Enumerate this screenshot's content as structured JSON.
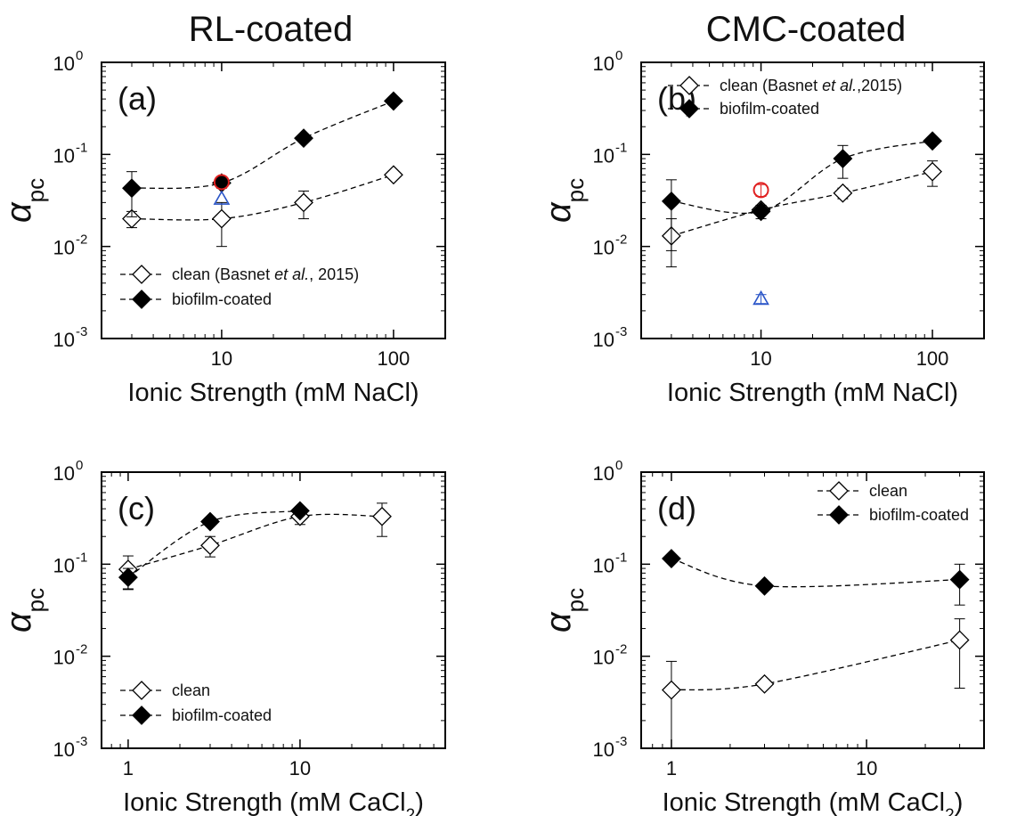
{
  "column_titles": [
    "RL-coated",
    "CMC-coated"
  ],
  "chart_data": [
    {
      "type": "scatter",
      "panel_label": "(a)",
      "title": "",
      "xlabel": "Ionic Strength (mM NaCl)",
      "xlabel_parts": [
        "Ionic Strength (mM NaCl)"
      ],
      "ylabel": "α",
      "ylabel_sub": "pc",
      "xscale": "log",
      "yscale": "log",
      "xlim": [
        2,
        200
      ],
      "ylim": [
        0.001,
        1
      ],
      "xticks": [
        10,
        100
      ],
      "xtick_labels": [
        "10",
        "100"
      ],
      "yticks": [
        0.001,
        0.01,
        0.1,
        1
      ],
      "ytick_labels": [
        {
          "base": "10",
          "exp": "-3"
        },
        {
          "base": "10",
          "exp": "-2"
        },
        {
          "base": "10",
          "exp": "-1"
        },
        {
          "base": "10",
          "exp": "0"
        }
      ],
      "legend_position": "bottom-left",
      "series": [
        {
          "name": "clean (Basnet et al., 2015)",
          "name_parts": [
            "clean (Basnet ",
            "et al.",
            ", 2015)"
          ],
          "marker": "diamond-open",
          "connected": true,
          "x": [
            3,
            10,
            30,
            100
          ],
          "y": [
            0.02,
            0.02,
            0.03,
            0.06
          ],
          "err": [
            0.004,
            0.01,
            0.01,
            0.005
          ]
        },
        {
          "name": "biofilm-coated",
          "marker": "diamond-filled",
          "connected": true,
          "x": [
            3,
            10,
            30,
            100
          ],
          "y": [
            0.043,
            0.049,
            0.15,
            0.38
          ],
          "err": [
            0.022,
            0.006,
            0,
            0
          ]
        },
        {
          "marker": "circle-open-red",
          "connected": false,
          "x": [
            10
          ],
          "y": [
            0.05
          ],
          "err": [
            0
          ]
        },
        {
          "marker": "triangle-open-blue",
          "connected": false,
          "x": [
            10
          ],
          "y": [
            0.033
          ],
          "err": [
            0
          ]
        }
      ]
    },
    {
      "type": "scatter",
      "panel_label": "(b)",
      "title": "",
      "xlabel": "Ionic Strength (mM NaCl)",
      "xlabel_parts": [
        "Ionic Strength (mM NaCl)"
      ],
      "ylabel": "α",
      "ylabel_sub": "pc",
      "xscale": "log",
      "yscale": "log",
      "xlim": [
        2,
        200
      ],
      "ylim": [
        0.001,
        1
      ],
      "xticks": [
        10,
        100
      ],
      "xtick_labels": [
        "10",
        "100"
      ],
      "yticks": [
        0.001,
        0.01,
        0.1,
        1
      ],
      "ytick_labels": [
        {
          "base": "10",
          "exp": "-3"
        },
        {
          "base": "10",
          "exp": "-2"
        },
        {
          "base": "10",
          "exp": "-1"
        },
        {
          "base": "10",
          "exp": "0"
        }
      ],
      "legend_position": "top",
      "series": [
        {
          "name": "clean (Basnet et al.,2015)",
          "name_parts": [
            "clean (Basnet ",
            "et al.",
            ",2015)"
          ],
          "marker": "diamond-open",
          "connected": true,
          "x": [
            3,
            10,
            30,
            100
          ],
          "y": [
            0.013,
            0.025,
            0.038,
            0.065
          ],
          "err": [
            0.007,
            0.003,
            0.005,
            0.02
          ]
        },
        {
          "name": "biofilm-coated",
          "marker": "diamond-filled",
          "connected": true,
          "x": [
            3,
            10,
            30,
            100
          ],
          "y": [
            0.031,
            0.024,
            0.09,
            0.14
          ],
          "err": [
            0.022,
            0.004,
            0.035,
            0
          ]
        },
        {
          "marker": "circle-open-red",
          "connected": false,
          "x": [
            10
          ],
          "y": [
            0.041
          ],
          "err": [
            0.006
          ]
        },
        {
          "marker": "triangle-open-blue",
          "connected": false,
          "x": [
            10
          ],
          "y": [
            0.0027
          ],
          "err": [
            0.0003
          ]
        }
      ]
    },
    {
      "type": "scatter",
      "panel_label": "(c)",
      "title": "",
      "xlabel": "Ionic Strength (mM CaCl2)",
      "xlabel_parts": [
        "Ionic Strength (mM CaCl",
        "2",
        ")"
      ],
      "ylabel": "α",
      "ylabel_sub": "pc",
      "xscale": "log",
      "yscale": "log",
      "xlim": [
        0.7,
        70
      ],
      "ylim": [
        0.001,
        1
      ],
      "xticks": [
        1,
        10
      ],
      "xtick_labels": [
        "1",
        "10"
      ],
      "yticks": [
        0.001,
        0.01,
        0.1,
        1
      ],
      "ytick_labels": [
        {
          "base": "10",
          "exp": "-3"
        },
        {
          "base": "10",
          "exp": "-2"
        },
        {
          "base": "10",
          "exp": "-1"
        },
        {
          "base": "10",
          "exp": "0"
        }
      ],
      "legend_position": "bottom-left",
      "series": [
        {
          "name": "clean",
          "marker": "diamond-open",
          "connected": true,
          "x": [
            1,
            3,
            10,
            30
          ],
          "y": [
            0.088,
            0.16,
            0.33,
            0.33
          ],
          "err": [
            0.035,
            0.04,
            0.06,
            0.13
          ]
        },
        {
          "name": "biofilm-coated",
          "marker": "diamond-filled",
          "connected": true,
          "x": [
            1,
            3,
            10
          ],
          "y": [
            0.072,
            0.29,
            0.38
          ],
          "err": [
            0.018,
            0,
            0
          ]
        }
      ]
    },
    {
      "type": "scatter",
      "panel_label": "(d)",
      "title": "",
      "xlabel": "Ionic Strength (mM CaCl2)",
      "xlabel_parts": [
        "Ionic Strength (mM CaCl",
        "2",
        ")"
      ],
      "ylabel": "α",
      "ylabel_sub": "pc",
      "xscale": "log",
      "yscale": "log",
      "xlim": [
        0.7,
        40
      ],
      "ylim": [
        0.001,
        1
      ],
      "xticks": [
        1,
        10
      ],
      "xtick_labels": [
        "1",
        "10"
      ],
      "yticks": [
        0.001,
        0.01,
        0.1,
        1
      ],
      "ytick_labels": [
        {
          "base": "10",
          "exp": "-3"
        },
        {
          "base": "10",
          "exp": "-2"
        },
        {
          "base": "10",
          "exp": "-1"
        },
        {
          "base": "10",
          "exp": "0"
        }
      ],
      "legend_position": "top-right",
      "series": [
        {
          "name": "clean",
          "marker": "diamond-open",
          "connected": true,
          "x": [
            1,
            3,
            30
          ],
          "y": [
            0.0043,
            0.005,
            0.015
          ],
          "err": [
            0.0045,
            0.0003,
            0.0105
          ]
        },
        {
          "name": "biofilm-coated",
          "marker": "diamond-filled",
          "connected": true,
          "x": [
            1,
            3,
            30
          ],
          "y": [
            0.115,
            0.058,
            0.068
          ],
          "err": [
            0,
            0,
            0.032
          ]
        }
      ]
    }
  ]
}
